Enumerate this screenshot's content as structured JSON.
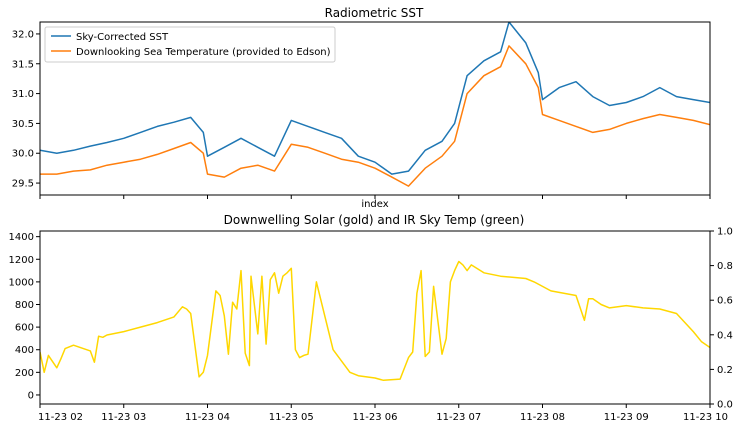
{
  "colors": {
    "sky_corrected": "#1f77b4",
    "downlooking": "#ff7f0e",
    "solar": "#ffd700",
    "axis": "#000000",
    "background": "#ffffff"
  },
  "chart_data": [
    {
      "type": "line",
      "title": "Radiometric SST",
      "xlabel": "index",
      "ylabel": "",
      "ylim": [
        29.3,
        32.2
      ],
      "xlim": [
        2.0,
        10.0
      ],
      "x_tick_positions": [
        2,
        3,
        4,
        5,
        6,
        7,
        8,
        9,
        10
      ],
      "x_tick_labels_visible": false,
      "yticks": [
        29.5,
        30.0,
        30.5,
        31.0,
        31.5,
        32.0
      ],
      "ytick_labels": [
        "29.5",
        "30.0",
        "30.5",
        "31.0",
        "31.5",
        "32.0"
      ],
      "grid": false,
      "legend": "top-left",
      "series": [
        {
          "name": "Sky-Corrected SST",
          "color": "#1f77b4",
          "x": [
            2.0,
            2.2,
            2.4,
            2.6,
            2.8,
            3.0,
            3.2,
            3.4,
            3.6,
            3.8,
            3.95,
            4.0,
            4.2,
            4.4,
            4.6,
            4.8,
            5.0,
            5.2,
            5.4,
            5.6,
            5.8,
            6.0,
            6.2,
            6.4,
            6.6,
            6.8,
            6.95,
            7.1,
            7.3,
            7.5,
            7.6,
            7.8,
            7.95,
            8.0,
            8.2,
            8.4,
            8.6,
            8.8,
            9.0,
            9.2,
            9.4,
            9.6,
            9.8,
            10.0
          ],
          "values": [
            30.05,
            30.0,
            30.05,
            30.12,
            30.18,
            30.25,
            30.35,
            30.45,
            30.52,
            30.6,
            30.35,
            29.95,
            30.1,
            30.25,
            30.1,
            29.95,
            30.55,
            30.45,
            30.35,
            30.25,
            29.95,
            29.85,
            29.65,
            29.7,
            30.05,
            30.2,
            30.5,
            31.3,
            31.55,
            31.7,
            32.2,
            31.85,
            31.35,
            30.9,
            31.1,
            31.2,
            30.95,
            30.8,
            30.85,
            30.95,
            31.1,
            30.95,
            30.9,
            30.85
          ]
        },
        {
          "name": "Downlooking Sea Temperature (provided to Edson)",
          "color": "#ff7f0e",
          "x": [
            2.0,
            2.2,
            2.4,
            2.6,
            2.8,
            3.0,
            3.2,
            3.4,
            3.6,
            3.8,
            3.95,
            4.0,
            4.2,
            4.4,
            4.6,
            4.8,
            5.0,
            5.2,
            5.4,
            5.6,
            5.8,
            6.0,
            6.2,
            6.4,
            6.6,
            6.8,
            6.95,
            7.1,
            7.3,
            7.5,
            7.6,
            7.8,
            7.95,
            8.0,
            8.2,
            8.4,
            8.6,
            8.8,
            9.0,
            9.2,
            9.4,
            9.6,
            9.8,
            10.0
          ],
          "values": [
            29.65,
            29.65,
            29.7,
            29.72,
            29.8,
            29.85,
            29.9,
            29.98,
            30.08,
            30.18,
            30.0,
            29.65,
            29.6,
            29.75,
            29.8,
            29.7,
            30.15,
            30.1,
            30.0,
            29.9,
            29.85,
            29.75,
            29.6,
            29.45,
            29.75,
            29.95,
            30.2,
            31.0,
            31.3,
            31.45,
            31.8,
            31.5,
            31.1,
            30.65,
            30.55,
            30.45,
            30.35,
            30.4,
            30.5,
            30.58,
            30.65,
            30.6,
            30.55,
            30.48
          ]
        }
      ]
    },
    {
      "type": "line",
      "title": "Downwelling Solar (gold) and IR Sky Temp (green)",
      "xlabel": "",
      "ylabel": "",
      "ylim": [
        -80,
        1450
      ],
      "xlim": [
        2.0,
        10.0
      ],
      "x_tick_positions": [
        2,
        3,
        4,
        5,
        6,
        7,
        8,
        9,
        10
      ],
      "x_tick_labels": [
        "11-23 02",
        "11-23 03",
        "11-23 04",
        "11-23 05",
        "11-23 06",
        "11-23 07",
        "11-23 08",
        "11-23 09",
        "11-23 10"
      ],
      "yticks": [
        0,
        200,
        400,
        600,
        800,
        1000,
        1200,
        1400
      ],
      "ytick_labels": [
        "0",
        "200",
        "400",
        "600",
        "800",
        "1000",
        "1200",
        "1400"
      ],
      "y2lim": [
        0.0,
        1.0
      ],
      "y2ticks": [
        0.0,
        0.2,
        0.4,
        0.6,
        0.8,
        1.0
      ],
      "y2tick_labels": [
        "0.0",
        "0.2",
        "0.4",
        "0.6",
        "0.8",
        "1.0"
      ],
      "grid": false,
      "series": [
        {
          "color": "#ffd700",
          "x": [
            2.0,
            2.05,
            2.1,
            2.2,
            2.25,
            2.3,
            2.4,
            2.6,
            2.65,
            2.7,
            2.75,
            2.8,
            3.0,
            3.2,
            3.4,
            3.6,
            3.7,
            3.75,
            3.8,
            3.9,
            3.95,
            4.0,
            4.1,
            4.15,
            4.2,
            4.25,
            4.3,
            4.35,
            4.4,
            4.45,
            4.5,
            4.52,
            4.6,
            4.65,
            4.7,
            4.75,
            4.8,
            4.85,
            4.9,
            4.95,
            5.0,
            5.05,
            5.1,
            5.15,
            5.2,
            5.3,
            5.5,
            5.7,
            5.8,
            5.9,
            6.0,
            6.1,
            6.3,
            6.4,
            6.45,
            6.5,
            6.55,
            6.6,
            6.65,
            6.7,
            6.8,
            6.85,
            6.9,
            6.95,
            7.0,
            7.05,
            7.1,
            7.15,
            7.3,
            7.5,
            7.8,
            7.9,
            8.0,
            8.1,
            8.4,
            8.5,
            8.55,
            8.6,
            8.7,
            8.8,
            9.0,
            9.2,
            9.4,
            9.6,
            9.8,
            9.9,
            10.0
          ],
          "values": [
            380,
            200,
            350,
            240,
            320,
            410,
            440,
            390,
            290,
            520,
            510,
            530,
            560,
            600,
            640,
            690,
            780,
            760,
            720,
            160,
            200,
            350,
            920,
            880,
            700,
            360,
            820,
            760,
            1100,
            370,
            260,
            1050,
            540,
            1050,
            450,
            1020,
            1080,
            900,
            1050,
            1080,
            1120,
            400,
            330,
            350,
            360,
            1000,
            400,
            200,
            170,
            160,
            150,
            130,
            140,
            330,
            380,
            900,
            1100,
            340,
            380,
            960,
            360,
            500,
            1000,
            1100,
            1180,
            1150,
            1100,
            1150,
            1080,
            1050,
            1030,
            1000,
            960,
            920,
            880,
            660,
            850,
            850,
            800,
            770,
            790,
            770,
            760,
            720,
            560,
            470,
            420
          ]
        }
      ]
    }
  ]
}
